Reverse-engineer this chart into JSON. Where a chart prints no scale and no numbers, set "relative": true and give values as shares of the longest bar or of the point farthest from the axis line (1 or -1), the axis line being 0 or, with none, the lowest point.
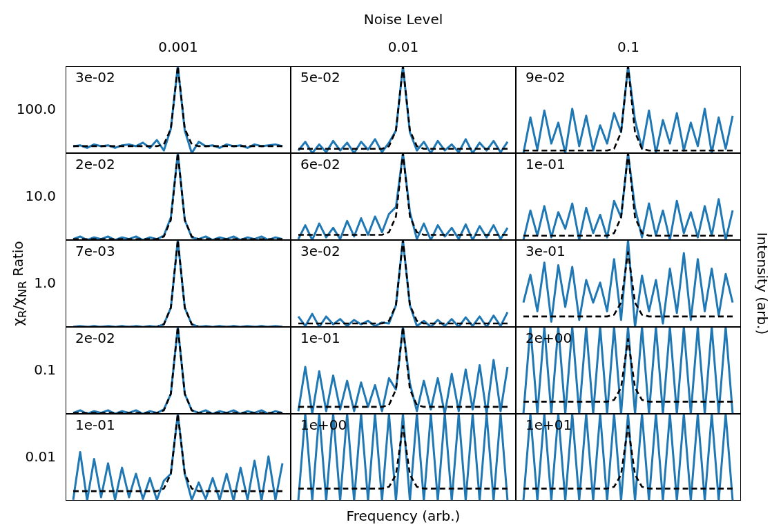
{
  "chart_data": [
    {
      "type": "line",
      "relative": true,
      "subtitle": "0.001",
      "ylabel": "100.0",
      "annotations": [
        "3e-02"
      ],
      "categories": [
        null,
        null,
        null,
        null,
        null,
        null,
        null,
        null,
        null,
        null,
        null,
        null,
        null,
        null,
        null,
        null,
        null,
        null,
        null,
        null,
        null,
        null,
        null,
        null,
        null,
        null,
        null,
        null,
        null,
        null,
        null
      ],
      "series": [
        {
          "color": "#1f77b4",
          "values": [
            0.08,
            0.09,
            0.06,
            0.1,
            0.08,
            0.09,
            0.06,
            0.09,
            0.1,
            0.08,
            0.12,
            0.06,
            0.15,
            0.03,
            0.28,
            1,
            0.26,
            0,
            0.13,
            0.08,
            0.09,
            0.06,
            0.1,
            0.08,
            0.09,
            0.06,
            0.1,
            0.08,
            0.09,
            0.1,
            0.08
          ]
        },
        {
          "color": "#000000",
          "line_style": "dashed",
          "values": [
            0.08,
            0.08,
            0.08,
            0.08,
            0.08,
            0.08,
            0.08,
            0.08,
            0.08,
            0.08,
            0.08,
            0.08,
            0.08,
            0.1,
            0.28,
            1,
            0.28,
            0.1,
            0.08,
            0.08,
            0.08,
            0.08,
            0.08,
            0.08,
            0.08,
            0.08,
            0.08,
            0.08,
            0.08,
            0.08,
            0.08
          ]
        }
      ]
    },
    {
      "type": "line",
      "relative": true,
      "title": "Noise Level",
      "subtitle": "0.01",
      "annotations": [
        "5e-02"
      ],
      "categories": [
        null,
        null,
        null,
        null,
        null,
        null,
        null,
        null,
        null,
        null,
        null,
        null,
        null,
        null,
        null,
        null,
        null,
        null,
        null,
        null,
        null,
        null,
        null,
        null,
        null,
        null,
        null,
        null,
        null,
        null,
        null
      ],
      "series": [
        {
          "color": "#1f77b4",
          "values": [
            0.03,
            0.13,
            0,
            0.1,
            0.01,
            0.14,
            0.03,
            0.12,
            0,
            0.13,
            0.04,
            0.16,
            0.01,
            0.12,
            0.26,
            1,
            0.24,
            0.03,
            0.13,
            0,
            0.14,
            0.03,
            0.1,
            0.01,
            0.16,
            0,
            0.12,
            0.03,
            0.14,
            0.01,
            0.13
          ]
        },
        {
          "color": "#000000",
          "line_style": "dashed",
          "values": [
            0.05,
            0.05,
            0.05,
            0.05,
            0.05,
            0.05,
            0.05,
            0.05,
            0.05,
            0.05,
            0.05,
            0.05,
            0.05,
            0.08,
            0.26,
            1,
            0.26,
            0.08,
            0.05,
            0.05,
            0.05,
            0.05,
            0.05,
            0.05,
            0.05,
            0.05,
            0.05,
            0.05,
            0.05,
            0.05,
            0.05
          ]
        }
      ]
    },
    {
      "type": "line",
      "relative": true,
      "subtitle": "0.1",
      "annotations": [
        "9e-02"
      ],
      "categories": [
        null,
        null,
        null,
        null,
        null,
        null,
        null,
        null,
        null,
        null,
        null,
        null,
        null,
        null,
        null,
        null,
        null,
        null,
        null,
        null,
        null,
        null,
        null,
        null,
        null,
        null,
        null,
        null,
        null,
        null,
        null
      ],
      "series": [
        {
          "color": "#1f77b4",
          "values": [
            0,
            0.41,
            0.04,
            0.49,
            0.11,
            0.35,
            0,
            0.51,
            0.08,
            0.43,
            0.03,
            0.32,
            0.11,
            0.46,
            0.24,
            1,
            0.38,
            0.05,
            0.49,
            0,
            0.38,
            0.11,
            0.46,
            0.03,
            0.35,
            0.08,
            0.51,
            0,
            0.41,
            0.05,
            0.43
          ]
        },
        {
          "color": "#000000",
          "line_style": "dashed",
          "values": [
            0.03,
            0.03,
            0.03,
            0.03,
            0.03,
            0.03,
            0.03,
            0.03,
            0.03,
            0.03,
            0.03,
            0.03,
            0.03,
            0.05,
            0.24,
            1,
            0.24,
            0.05,
            0.03,
            0.03,
            0.03,
            0.03,
            0.03,
            0.03,
            0.03,
            0.03,
            0.03,
            0.03,
            0.03,
            0.03,
            0.03
          ]
        }
      ]
    },
    {
      "type": "line",
      "relative": true,
      "ylabel": "10.0",
      "annotations": [
        "2e-02"
      ],
      "categories": [
        null,
        null,
        null,
        null,
        null,
        null,
        null,
        null,
        null,
        null,
        null,
        null,
        null,
        null,
        null,
        null,
        null,
        null,
        null,
        null,
        null,
        null,
        null,
        null,
        null,
        null,
        null,
        null,
        null,
        null,
        null
      ],
      "series": [
        {
          "color": "#1f77b4",
          "values": [
            0.01,
            0.04,
            0,
            0.03,
            0.01,
            0.04,
            0,
            0.03,
            0.01,
            0.04,
            0,
            0.03,
            0.01,
            0.05,
            0.26,
            1,
            0.23,
            0.03,
            0.01,
            0.04,
            0,
            0.03,
            0.01,
            0.04,
            0,
            0.03,
            0.01,
            0.04,
            0,
            0.03,
            0.01
          ]
        },
        {
          "color": "#000000",
          "line_style": "dashed",
          "values": [
            0.01,
            0.01,
            0.01,
            0.01,
            0.01,
            0.01,
            0.01,
            0.01,
            0.01,
            0.01,
            0.01,
            0.01,
            0.01,
            0.04,
            0.23,
            1,
            0.23,
            0.04,
            0.01,
            0.01,
            0.01,
            0.01,
            0.01,
            0.01,
            0.01,
            0.01,
            0.01,
            0.01,
            0.01,
            0.01,
            0.01
          ]
        }
      ]
    },
    {
      "type": "line",
      "relative": true,
      "annotations": [
        "6e-02"
      ],
      "categories": [
        null,
        null,
        null,
        null,
        null,
        null,
        null,
        null,
        null,
        null,
        null,
        null,
        null,
        null,
        null,
        null,
        null,
        null,
        null,
        null,
        null,
        null,
        null,
        null,
        null,
        null,
        null,
        null,
        null,
        null,
        null
      ],
      "series": [
        {
          "color": "#1f77b4",
          "values": [
            0.01,
            0.17,
            0,
            0.19,
            0.03,
            0.14,
            0.01,
            0.22,
            0.04,
            0.25,
            0.06,
            0.27,
            0.09,
            0.3,
            0.38,
            1,
            0.32,
            0.01,
            0.19,
            0,
            0.17,
            0.04,
            0.14,
            0.01,
            0.18,
            0,
            0.16,
            0.03,
            0.17,
            0.01,
            0.14
          ]
        },
        {
          "color": "#000000",
          "line_style": "dashed",
          "values": [
            0.06,
            0.06,
            0.06,
            0.06,
            0.06,
            0.06,
            0.06,
            0.06,
            0.06,
            0.06,
            0.06,
            0.06,
            0.06,
            0.09,
            0.27,
            1,
            0.27,
            0.09,
            0.06,
            0.06,
            0.06,
            0.06,
            0.06,
            0.06,
            0.06,
            0.06,
            0.06,
            0.06,
            0.06,
            0.06,
            0.06
          ]
        }
      ]
    },
    {
      "type": "line",
      "relative": true,
      "annotations": [
        "1e-01"
      ],
      "categories": [
        null,
        null,
        null,
        null,
        null,
        null,
        null,
        null,
        null,
        null,
        null,
        null,
        null,
        null,
        null,
        null,
        null,
        null,
        null,
        null,
        null,
        null,
        null,
        null,
        null,
        null,
        null,
        null,
        null,
        null,
        null
      ],
      "series": [
        {
          "color": "#1f77b4",
          "values": [
            0,
            0.34,
            0.05,
            0.39,
            0.03,
            0.32,
            0.13,
            0.42,
            0,
            0.37,
            0.08,
            0.29,
            0.03,
            0.45,
            0.26,
            1,
            0.37,
            0.03,
            0.42,
            0.05,
            0.34,
            0,
            0.45,
            0.08,
            0.32,
            0.03,
            0.39,
            0.05,
            0.47,
            0,
            0.34
          ]
        },
        {
          "color": "#000000",
          "line_style": "dashed",
          "values": [
            0.05,
            0.05,
            0.05,
            0.05,
            0.05,
            0.05,
            0.05,
            0.05,
            0.05,
            0.05,
            0.05,
            0.05,
            0.05,
            0.08,
            0.26,
            1,
            0.26,
            0.08,
            0.05,
            0.05,
            0.05,
            0.05,
            0.05,
            0.05,
            0.05,
            0.05,
            0.05,
            0.05,
            0.05,
            0.05,
            0.05
          ]
        }
      ]
    },
    {
      "type": "line",
      "relative": true,
      "ylabel": "1.0",
      "annotations": [
        "7e-03",
        "χ$_{R}$/χ$_{NR}$ Ratio"
      ],
      "categories": [
        null,
        null,
        null,
        null,
        null,
        null,
        null,
        null,
        null,
        null,
        null,
        null,
        null,
        null,
        null,
        null,
        null,
        null,
        null,
        null,
        null,
        null,
        null,
        null,
        null,
        null,
        null,
        null,
        null,
        null,
        null
      ],
      "series": [
        {
          "color": "#1f77b4",
          "values": [
            0,
            0.01,
            0,
            0.01,
            0,
            0.01,
            0,
            0.01,
            0,
            0.01,
            0,
            0.01,
            0,
            0.03,
            0.22,
            1,
            0.22,
            0.03,
            0,
            0.01,
            0,
            0.01,
            0,
            0.01,
            0,
            0.01,
            0,
            0.01,
            0,
            0.01,
            0
          ]
        },
        {
          "color": "#000000",
          "line_style": "dashed",
          "values": [
            0,
            0,
            0,
            0,
            0,
            0,
            0,
            0,
            0,
            0,
            0,
            0,
            0,
            0.03,
            0.22,
            1,
            0.22,
            0.03,
            0,
            0,
            0,
            0,
            0,
            0,
            0,
            0,
            0,
            0,
            0,
            0,
            0
          ]
        }
      ]
    },
    {
      "type": "line",
      "relative": true,
      "annotations": [
        "3e-02"
      ],
      "categories": [
        null,
        null,
        null,
        null,
        null,
        null,
        null,
        null,
        null,
        null,
        null,
        null,
        null,
        null,
        null,
        null,
        null,
        null,
        null,
        null,
        null,
        null,
        null,
        null,
        null,
        null,
        null,
        null,
        null,
        null,
        null
      ],
      "series": [
        {
          "color": "#1f77b4",
          "values": [
            0.12,
            0.01,
            0.15,
            0,
            0.12,
            0.03,
            0.09,
            0.01,
            0.08,
            0.03,
            0.07,
            0.01,
            0.05,
            0.04,
            0.25,
            1,
            0.25,
            0.01,
            0.07,
            0,
            0.08,
            0.01,
            0.09,
            0,
            0.11,
            0.01,
            0.12,
            0,
            0.13,
            0.01,
            0.17
          ]
        },
        {
          "color": "#000000",
          "line_style": "dashed",
          "values": [
            0.04,
            0.04,
            0.04,
            0.04,
            0.04,
            0.04,
            0.04,
            0.04,
            0.04,
            0.04,
            0.04,
            0.04,
            0.04,
            0.07,
            0.25,
            1,
            0.25,
            0.07,
            0.04,
            0.04,
            0.04,
            0.04,
            0.04,
            0.04,
            0.04,
            0.04,
            0.04,
            0.04,
            0.04,
            0.04,
            0.04
          ]
        }
      ]
    },
    {
      "type": "line",
      "relative": true,
      "y2label": "Intensity (arb.)",
      "annotations": [
        "3e-01"
      ],
      "categories": [
        null,
        null,
        null,
        null,
        null,
        null,
        null,
        null,
        null,
        null,
        null,
        null,
        null,
        null,
        null,
        null,
        null,
        null,
        null,
        null,
        null,
        null,
        null,
        null,
        null,
        null,
        null,
        null,
        null,
        null,
        null
      ],
      "series": [
        {
          "color": "#1f77b4",
          "values": [
            0.28,
            0.6,
            0.18,
            0.74,
            0.06,
            0.71,
            0.23,
            0.69,
            0.08,
            0.54,
            0.28,
            0.51,
            0.18,
            0.78,
            0.08,
            1,
            0,
            0.59,
            0.18,
            0.54,
            0.04,
            0.67,
            0.16,
            0.85,
            0.08,
            0.78,
            0.18,
            0.67,
            0.13,
            0.61,
            0.28
          ]
        },
        {
          "color": "#000000",
          "line_style": "dashed",
          "values": [
            0.12,
            0.12,
            0.12,
            0.12,
            0.12,
            0.12,
            0.12,
            0.12,
            0.12,
            0.12,
            0.12,
            0.12,
            0.12,
            0.14,
            0.28,
            0.86,
            0.28,
            0.14,
            0.12,
            0.12,
            0.12,
            0.12,
            0.12,
            0.12,
            0.12,
            0.12,
            0.12,
            0.12,
            0.12,
            0.12,
            0.12
          ]
        }
      ]
    },
    {
      "type": "line",
      "relative": true,
      "ylabel": "0.1",
      "annotations": [
        "2e-02"
      ],
      "categories": [
        null,
        null,
        null,
        null,
        null,
        null,
        null,
        null,
        null,
        null,
        null,
        null,
        null,
        null,
        null,
        null,
        null,
        null,
        null,
        null,
        null,
        null,
        null,
        null,
        null,
        null,
        null,
        null,
        null,
        null,
        null
      ],
      "series": [
        {
          "color": "#1f77b4",
          "values": [
            0.01,
            0.04,
            0,
            0.03,
            0.01,
            0.04,
            0,
            0.03,
            0.01,
            0.04,
            0,
            0.03,
            0.01,
            0.05,
            0.23,
            1,
            0.23,
            0.04,
            0.01,
            0.04,
            0,
            0.03,
            0.01,
            0.04,
            0,
            0.03,
            0.01,
            0.04,
            0,
            0.03,
            0.01
          ]
        },
        {
          "color": "#000000",
          "line_style": "dashed",
          "values": [
            0.01,
            0.01,
            0.01,
            0.01,
            0.01,
            0.01,
            0.01,
            0.01,
            0.01,
            0.01,
            0.01,
            0.01,
            0.01,
            0.04,
            0.23,
            1,
            0.23,
            0.04,
            0.01,
            0.01,
            0.01,
            0.01,
            0.01,
            0.01,
            0.01,
            0.01,
            0.01,
            0.01,
            0.01,
            0.01,
            0.01
          ]
        }
      ]
    },
    {
      "type": "line",
      "relative": true,
      "annotations": [
        "1e-01"
      ],
      "categories": [
        null,
        null,
        null,
        null,
        null,
        null,
        null,
        null,
        null,
        null,
        null,
        null,
        null,
        null,
        null,
        null,
        null,
        null,
        null,
        null,
        null,
        null,
        null,
        null,
        null,
        null,
        null,
        null,
        null,
        null,
        null
      ],
      "series": [
        {
          "color": "#1f77b4",
          "values": [
            0.03,
            0.54,
            0,
            0.49,
            0.03,
            0.44,
            0.05,
            0.38,
            0.03,
            0.36,
            0.08,
            0.33,
            0.03,
            0.41,
            0.28,
            1,
            0.35,
            0.03,
            0.38,
            0.05,
            0.41,
            0,
            0.46,
            0.03,
            0.51,
            0.05,
            0.56,
            0,
            0.62,
            0.03,
            0.54
          ]
        },
        {
          "color": "#000000",
          "line_style": "dashed",
          "values": [
            0.08,
            0.08,
            0.08,
            0.08,
            0.08,
            0.08,
            0.08,
            0.08,
            0.08,
            0.08,
            0.08,
            0.08,
            0.08,
            0.1,
            0.28,
            1,
            0.28,
            0.1,
            0.08,
            0.08,
            0.08,
            0.08,
            0.08,
            0.08,
            0.08,
            0.08,
            0.08,
            0.08,
            0.08,
            0.08,
            0.08
          ]
        }
      ]
    },
    {
      "type": "line",
      "relative": true,
      "annotations": [
        "2e+00"
      ],
      "categories": [
        null,
        null,
        null,
        null,
        null,
        null,
        null,
        null,
        null,
        null,
        null,
        null,
        null,
        null,
        null,
        null,
        null,
        null,
        null,
        null,
        null,
        null,
        null,
        null,
        null,
        null,
        null,
        null,
        null,
        null,
        null
      ],
      "series": [
        {
          "color": "#1f77b4",
          "values": [
            0,
            1,
            0,
            1,
            0,
            1,
            0,
            1,
            0,
            1,
            0,
            1,
            0,
            1,
            0,
            1,
            0,
            1,
            0,
            1,
            0,
            1,
            0,
            1,
            0,
            1,
            0,
            1,
            0,
            1,
            0
          ]
        },
        {
          "color": "#000000",
          "line_style": "dashed",
          "values": [
            0.14,
            0.14,
            0.14,
            0.14,
            0.14,
            0.14,
            0.14,
            0.14,
            0.14,
            0.14,
            0.14,
            0.14,
            0.14,
            0.16,
            0.3,
            0.86,
            0.3,
            0.16,
            0.14,
            0.14,
            0.14,
            0.14,
            0.14,
            0.14,
            0.14,
            0.14,
            0.14,
            0.14,
            0.14,
            0.14,
            0.14
          ]
        }
      ]
    },
    {
      "type": "line",
      "relative": true,
      "ylabel": "0.01",
      "annotations": [
        "1e-01"
      ],
      "categories": [
        null,
        null,
        null,
        null,
        null,
        null,
        null,
        null,
        null,
        null,
        null,
        null,
        null,
        null,
        null,
        null,
        null,
        null,
        null,
        null,
        null,
        null,
        null,
        null,
        null,
        null,
        null,
        null,
        null,
        null,
        null
      ],
      "series": [
        {
          "color": "#1f77b4",
          "values": [
            0.01,
            0.56,
            0,
            0.48,
            0.04,
            0.43,
            0.01,
            0.38,
            0.04,
            0.31,
            0.02,
            0.26,
            0.01,
            0.23,
            0.31,
            1,
            0.31,
            0.01,
            0.21,
            0.02,
            0.26,
            0.01,
            0.31,
            0,
            0.38,
            0.01,
            0.46,
            0,
            0.51,
            0.01,
            0.43
          ]
        },
        {
          "color": "#000000",
          "line_style": "dashed",
          "values": [
            0.11,
            0.11,
            0.11,
            0.11,
            0.11,
            0.11,
            0.11,
            0.11,
            0.11,
            0.11,
            0.11,
            0.11,
            0.11,
            0.14,
            0.31,
            1,
            0.31,
            0.14,
            0.11,
            0.11,
            0.11,
            0.11,
            0.11,
            0.11,
            0.11,
            0.11,
            0.11,
            0.11,
            0.11,
            0.11,
            0.11
          ]
        }
      ]
    },
    {
      "type": "line",
      "relative": true,
      "xlabel": "Frequency (arb.)",
      "annotations": [
        "1e+00"
      ],
      "categories": [
        null,
        null,
        null,
        null,
        null,
        null,
        null,
        null,
        null,
        null,
        null,
        null,
        null,
        null,
        null,
        null,
        null,
        null,
        null,
        null,
        null,
        null,
        null,
        null,
        null,
        null,
        null,
        null,
        null,
        null,
        null
      ],
      "series": [
        {
          "color": "#1f77b4",
          "values": [
            0,
            1,
            0,
            1,
            0,
            1,
            0,
            1,
            0,
            1,
            0,
            1,
            0,
            1,
            0,
            1,
            0,
            1,
            0,
            1,
            0,
            1,
            0,
            1,
            0,
            1,
            0,
            1,
            0,
            1,
            0
          ]
        },
        {
          "color": "#000000",
          "line_style": "dashed",
          "values": [
            0.14,
            0.14,
            0.14,
            0.14,
            0.14,
            0.14,
            0.14,
            0.14,
            0.14,
            0.14,
            0.14,
            0.14,
            0.14,
            0.16,
            0.3,
            0.86,
            0.3,
            0.16,
            0.14,
            0.14,
            0.14,
            0.14,
            0.14,
            0.14,
            0.14,
            0.14,
            0.14,
            0.14,
            0.14,
            0.14,
            0.14
          ]
        }
      ]
    },
    {
      "type": "line",
      "relative": true,
      "annotations": [
        "1e+01"
      ],
      "categories": [
        null,
        null,
        null,
        null,
        null,
        null,
        null,
        null,
        null,
        null,
        null,
        null,
        null,
        null,
        null,
        null,
        null,
        null,
        null,
        null,
        null,
        null,
        null,
        null,
        null,
        null,
        null,
        null,
        null,
        null,
        null
      ],
      "series": [
        {
          "color": "#1f77b4",
          "values": [
            0,
            1,
            0,
            1,
            0,
            1,
            0,
            1,
            0,
            1,
            0,
            1,
            0,
            1,
            0,
            1,
            0,
            1,
            0,
            1,
            0,
            1,
            0,
            1,
            0,
            1,
            0,
            1,
            0,
            1,
            0
          ]
        },
        {
          "color": "#000000",
          "line_style": "dashed",
          "values": [
            0.14,
            0.14,
            0.14,
            0.14,
            0.14,
            0.14,
            0.14,
            0.14,
            0.14,
            0.14,
            0.14,
            0.14,
            0.14,
            0.16,
            0.3,
            0.86,
            0.3,
            0.16,
            0.14,
            0.14,
            0.14,
            0.14,
            0.14,
            0.14,
            0.14,
            0.14,
            0.14,
            0.14,
            0.14,
            0.14,
            0.14
          ]
        }
      ]
    }
  ]
}
